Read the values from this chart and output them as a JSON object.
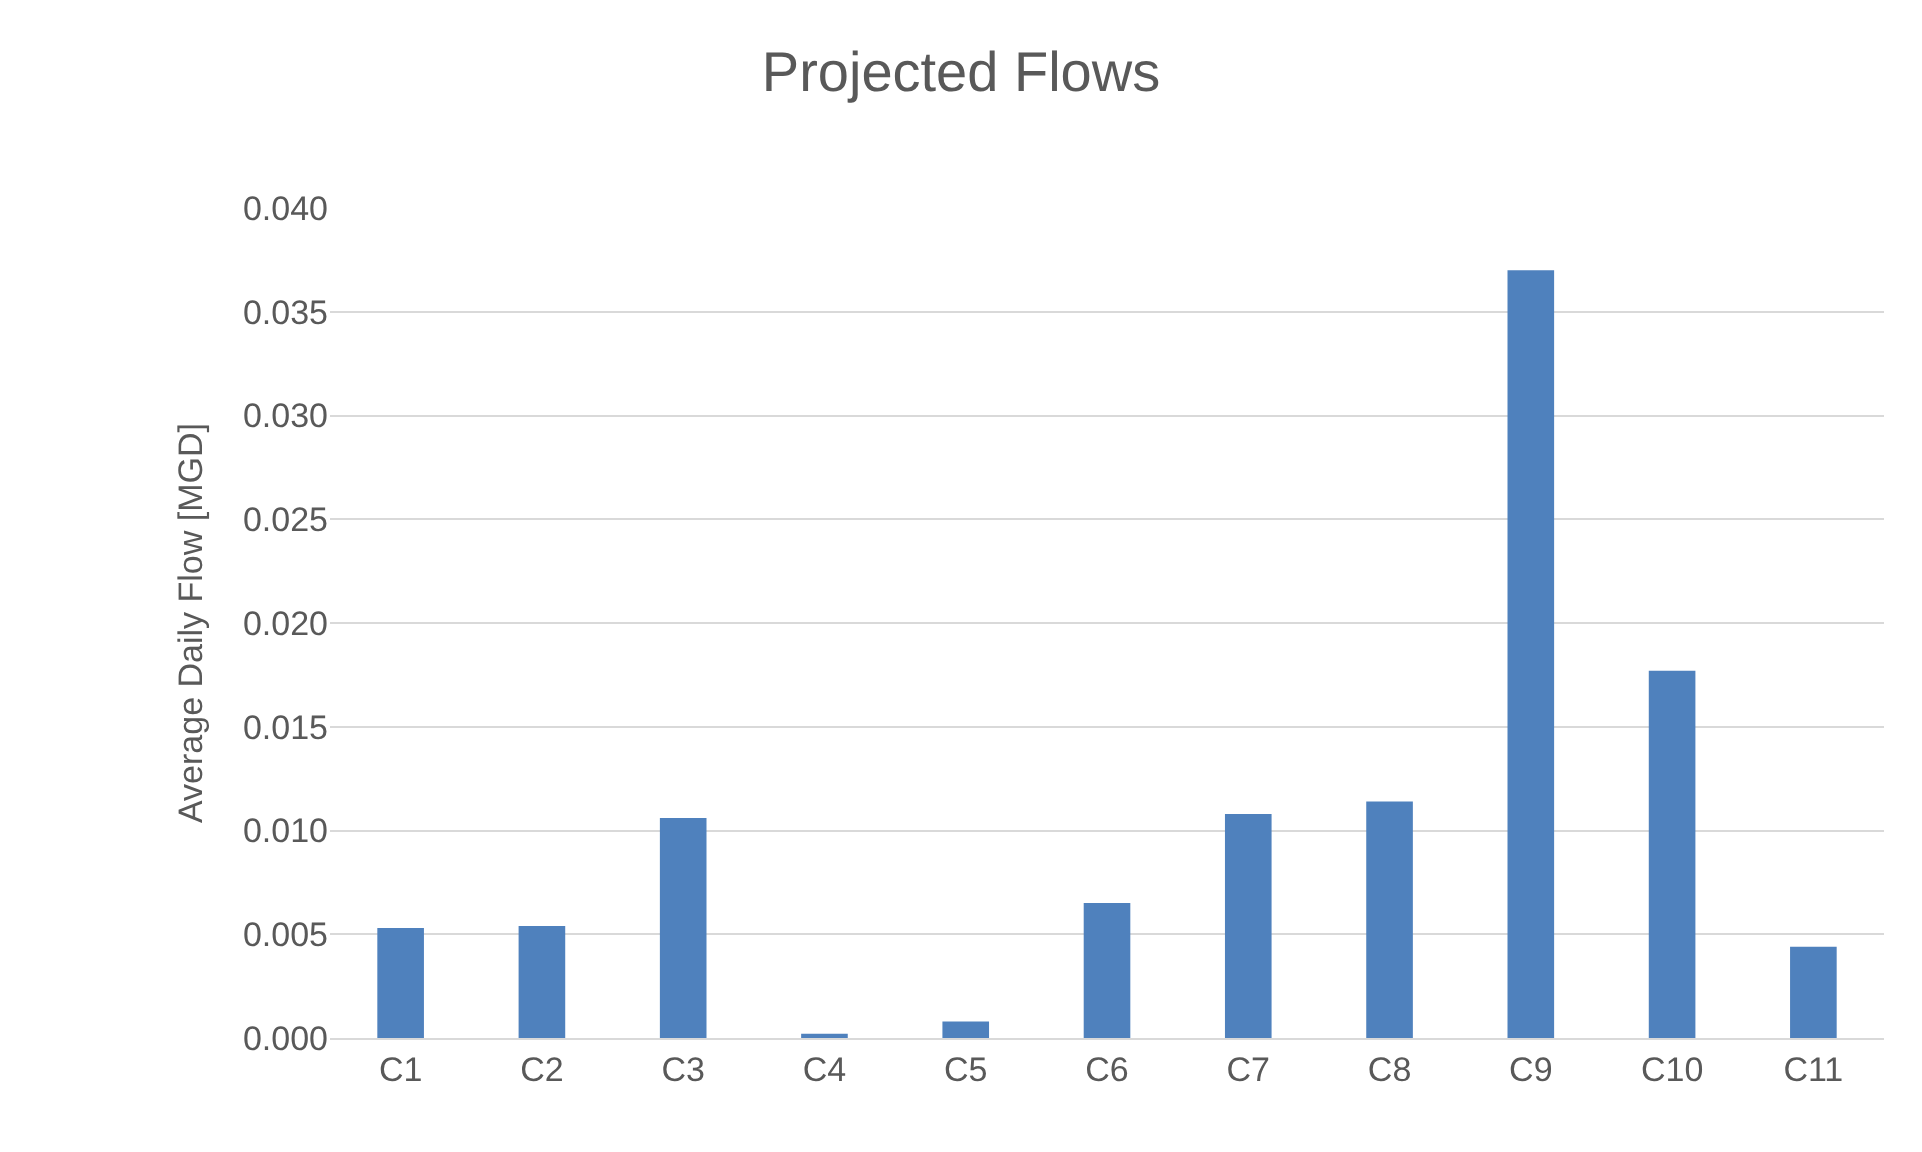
{
  "chart_data": {
    "type": "bar",
    "title": "Projected Flows",
    "ylabel": "Average Daily Flow [MGD]",
    "categories": [
      "C1",
      "C2",
      "C3",
      "C4",
      "C5",
      "C6",
      "C7",
      "C8",
      "C9",
      "C10",
      "C11"
    ],
    "values": [
      0.0053,
      0.0054,
      0.0106,
      0.0002,
      0.0008,
      0.0065,
      0.0108,
      0.0114,
      0.037,
      0.0177,
      0.0044
    ],
    "color": "#4f81bd",
    "ylim": [
      0,
      0.04
    ],
    "yticks": [
      {
        "value": 0,
        "label": "0.000"
      },
      {
        "value": 0.005,
        "label": "0.005"
      },
      {
        "value": 0.01,
        "label": "0.010"
      },
      {
        "value": 0.015,
        "label": "0.015"
      },
      {
        "value": 0.02,
        "label": "0.020"
      },
      {
        "value": 0.025,
        "label": "0.025"
      },
      {
        "value": 0.03,
        "label": "0.030"
      },
      {
        "value": 0.035,
        "label": "0.035"
      },
      {
        "value": 0.04,
        "label": "0.040"
      }
    ],
    "grid": "y"
  }
}
